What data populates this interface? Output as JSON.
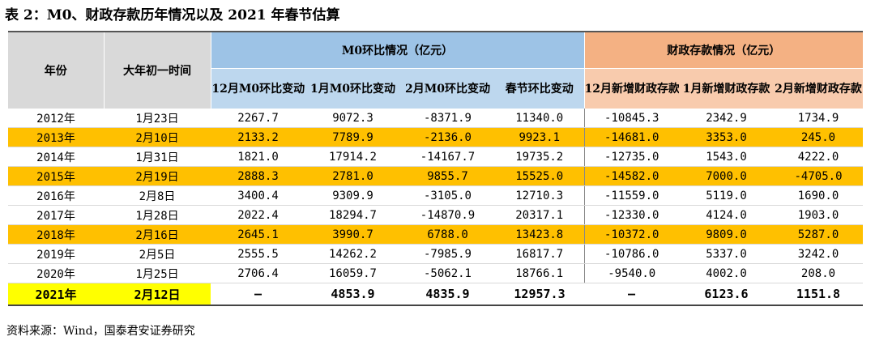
{
  "title": "表 2：M0、财政存款历年情况以及 2021 年春节估算",
  "header": {
    "year": "年份",
    "date": "大年初一时间",
    "m0_group": "M0环比情况（亿元）",
    "fiscal_group": "财政存款情况（亿元）",
    "sub": [
      "12月M0环比变动",
      "1月M0环比变动",
      "2月M0环比变动",
      "春节环比变动",
      "12月新增财政存款",
      "1月新增财政存款",
      "2月新增财政存款"
    ]
  },
  "rows": [
    {
      "year": "2012年",
      "date": "1月23日",
      "v": [
        "2267.7",
        "9072.3",
        "-8371.9",
        "11340.0",
        "-10845.3",
        "2342.9",
        "1734.9"
      ],
      "highlight": false
    },
    {
      "year": "2013年",
      "date": "2月10日",
      "v": [
        "2133.2",
        "7789.9",
        "-2136.0",
        "9923.1",
        "-14681.0",
        "3353.0",
        "245.0"
      ],
      "highlight": true
    },
    {
      "year": "2014年",
      "date": "1月31日",
      "v": [
        "1821.0",
        "17914.2",
        "-14167.7",
        "19735.2",
        "-12735.0",
        "1543.0",
        "4222.0"
      ],
      "highlight": false
    },
    {
      "year": "2015年",
      "date": "2月19日",
      "v": [
        "2888.3",
        "2781.0",
        "9855.7",
        "15525.0",
        "-14582.0",
        "7000.0",
        "-4705.0"
      ],
      "highlight": true
    },
    {
      "year": "2016年",
      "date": "2月8日",
      "v": [
        "3400.4",
        "9309.9",
        "-3105.0",
        "12710.3",
        "-11559.0",
        "5119.0",
        "1690.0"
      ],
      "highlight": false
    },
    {
      "year": "2017年",
      "date": "1月28日",
      "v": [
        "2022.4",
        "18294.7",
        "-14870.9",
        "20317.1",
        "-12330.0",
        "4124.0",
        "1903.0"
      ],
      "highlight": false
    },
    {
      "year": "2018年",
      "date": "2月16日",
      "v": [
        "2645.1",
        "3990.7",
        "6788.0",
        "13423.8",
        "-10372.0",
        "9809.0",
        "5287.0"
      ],
      "highlight": true
    },
    {
      "year": "2019年",
      "date": "2月5日",
      "v": [
        "2555.5",
        "14262.2",
        "-7985.9",
        "16817.7",
        "-10786.0",
        "5337.0",
        "3242.0"
      ],
      "highlight": false
    },
    {
      "year": "2020年",
      "date": "1月25日",
      "v": [
        "2706.4",
        "16059.7",
        "-5062.1",
        "18766.1",
        "-9540.0",
        "4002.0",
        "208.0"
      ],
      "highlight": false
    }
  ],
  "last": {
    "year": "2021年",
    "date": "2月12日",
    "v": [
      "–",
      "4853.9",
      "4835.9",
      "12957.3",
      "–",
      "6123.6",
      "1151.8"
    ]
  },
  "source": "资料来源：Wind，国泰君安证券研究",
  "colors": {
    "header_gray": "#d9d9d9",
    "m0_blue": "#9dc3e6",
    "fiscal_orange": "#f4b183",
    "row_highlight": "#ffc000",
    "year_highlight": "#ffff00"
  }
}
